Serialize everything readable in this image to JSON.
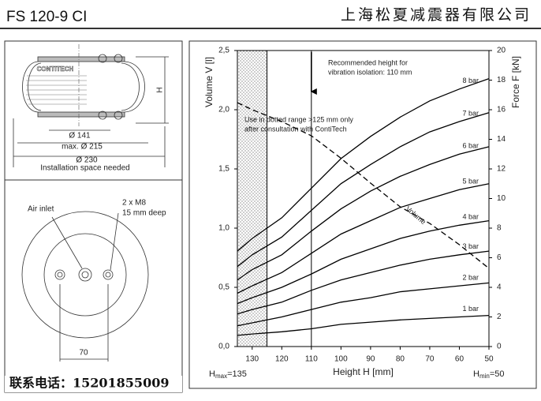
{
  "header": {
    "model": "FS 120-9 CI",
    "company": "上海松夏减震器有限公司"
  },
  "drawing": {
    "diameter_inner": "Ø 141",
    "diameter_max": "max. Ø 215",
    "diameter_space": "Ø 230",
    "caption": "Installation space needed",
    "height": "H",
    "brand": "CONTITECH",
    "air_inlet": "Air inlet",
    "thread": "2 x M8",
    "thread_depth": "15 mm deep",
    "spacing": "70"
  },
  "footer": {
    "contact": "联系电话：15201855009"
  },
  "chart_data": {
    "type": "line",
    "xlabel": "Height H [mm]",
    "ylabel": "Volume V [l]",
    "y2label": "Force F [kN]",
    "x": [
      135,
      130,
      120,
      110,
      100,
      90,
      80,
      70,
      60,
      50
    ],
    "xlim": [
      135,
      50
    ],
    "xticks": [
      130,
      120,
      110,
      100,
      90,
      80,
      70,
      60,
      50
    ],
    "ylim": [
      0,
      2.5
    ],
    "yticks": [
      {
        "value": 0,
        "label": "0,0"
      },
      {
        "value": 0.5,
        "label": "0,5"
      },
      {
        "value": 1,
        "label": "1,0"
      },
      {
        "value": 1.5,
        "label": "1,5"
      },
      {
        "value": 2,
        "label": "2,0"
      },
      {
        "value": 2.5,
        "label": "2,5"
      }
    ],
    "y2lim": [
      0,
      20
    ],
    "y2ticks": [
      0,
      2,
      4,
      6,
      8,
      10,
      12,
      14,
      16,
      18,
      20
    ],
    "h_max": {
      "symbol": "H",
      "sub": "max",
      "text": "=135"
    },
    "h_min": {
      "symbol": "H",
      "sub": "min",
      "text": "=50"
    },
    "recommended_height": 110,
    "recommended_text": [
      "Recommended height for",
      "vibration isolation: 110 mm"
    ],
    "dotted_range_limit": 125,
    "dotted_text": [
      "Use in dotted range >125 mm only",
      "after consultation with ContiTech"
    ],
    "series": [
      {
        "name": "Volume",
        "color": "#000000",
        "style": "dashed",
        "axis": "y",
        "values": [
          2.06,
          2.0,
          1.9,
          1.78,
          1.59,
          1.38,
          1.18,
          1.04,
          0.86,
          0.66
        ]
      },
      {
        "name": "8 bar",
        "color": "#000000",
        "axis": "y2",
        "values": [
          6.45,
          7.3,
          8.7,
          10.7,
          12.7,
          14.2,
          15.5,
          16.6,
          17.4,
          18.1
        ]
      },
      {
        "name": "7 bar",
        "color": "#000000",
        "axis": "y2",
        "values": [
          5.4,
          6.2,
          7.4,
          9.2,
          11.0,
          12.3,
          13.5,
          14.5,
          15.2,
          15.8
        ]
      },
      {
        "name": "6 bar",
        "color": "#000000",
        "axis": "y2",
        "values": [
          4.5,
          5.2,
          6.2,
          7.8,
          9.3,
          10.5,
          11.5,
          12.3,
          13.0,
          13.5
        ]
      },
      {
        "name": "5 bar",
        "color": "#000000",
        "axis": "y2",
        "values": [
          3.6,
          4.1,
          5.0,
          6.3,
          7.6,
          8.5,
          9.4,
          10.0,
          10.6,
          11.0
        ]
      },
      {
        "name": "4 bar",
        "color": "#000000",
        "axis": "y2",
        "values": [
          2.9,
          3.3,
          4.0,
          4.9,
          5.9,
          6.6,
          7.3,
          7.8,
          8.2,
          8.5
        ]
      },
      {
        "name": "3 bar",
        "color": "#000000",
        "axis": "y2",
        "values": [
          2.2,
          2.5,
          3.0,
          3.8,
          4.5,
          5.0,
          5.5,
          5.9,
          6.2,
          6.45
        ]
      },
      {
        "name": "2 bar",
        "color": "#000000",
        "axis": "y2",
        "values": [
          1.4,
          1.6,
          2.0,
          2.5,
          3.0,
          3.3,
          3.7,
          3.9,
          4.1,
          4.3
        ]
      },
      {
        "name": "1 bar",
        "color": "#000000",
        "axis": "y2",
        "values": [
          0.75,
          0.85,
          1.0,
          1.2,
          1.5,
          1.65,
          1.8,
          1.9,
          2.0,
          2.1
        ]
      }
    ]
  }
}
